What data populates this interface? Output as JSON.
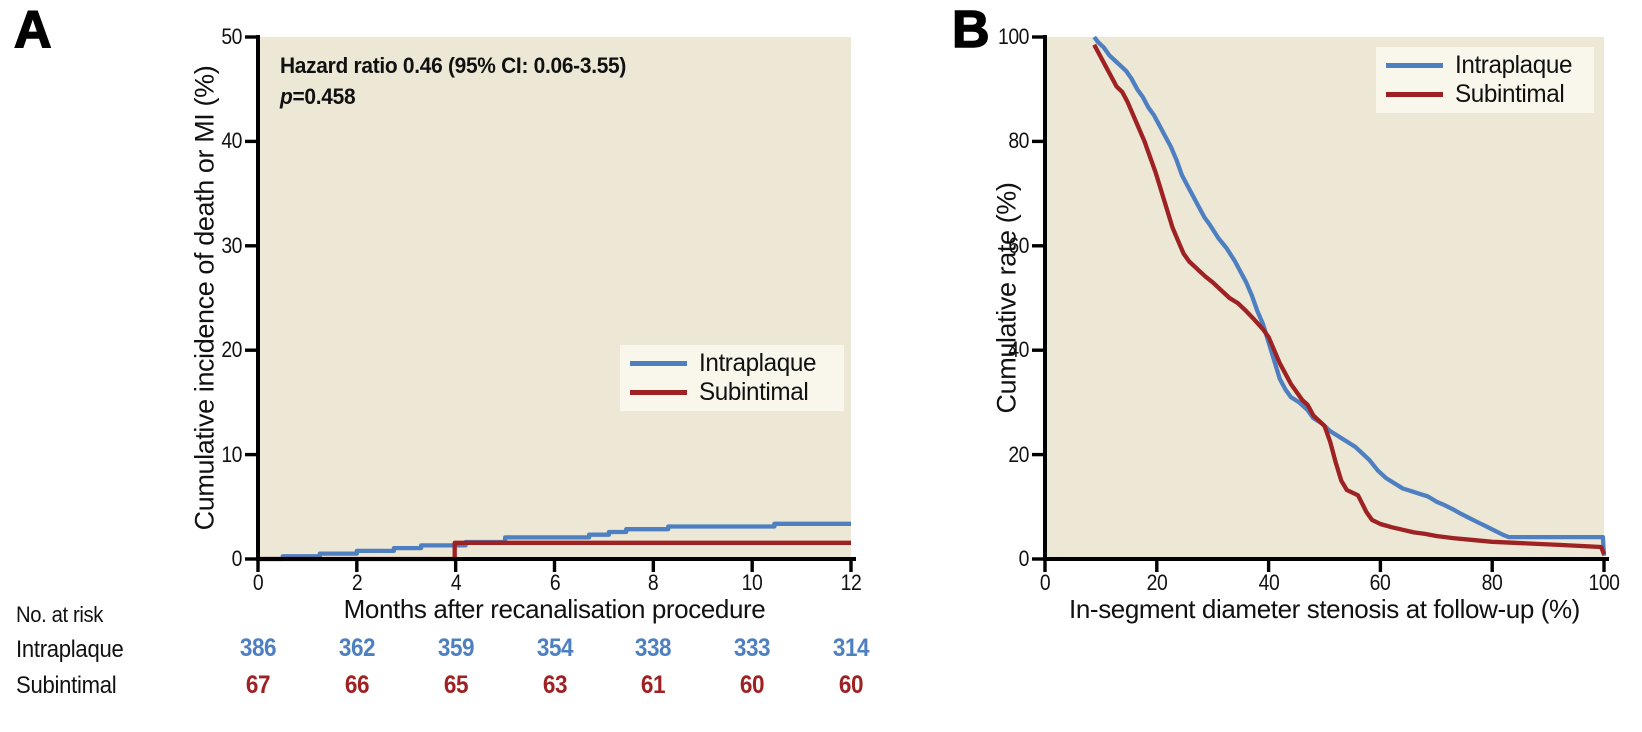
{
  "colors": {
    "blue": "#4E80C1",
    "red": "#9E2123",
    "plot_bg": "#ECE8D5",
    "legend_bg": "#F9F7EC",
    "axis": "#000000",
    "text": "#111111"
  },
  "chart_data": [
    {
      "type": "line",
      "panel": "A",
      "xlabel": "Months after recanalisation procedure",
      "ylabel": "Cumulative incidence of death or MI (%)",
      "xlim": [
        0,
        12
      ],
      "ylim": [
        0,
        50
      ],
      "xticks": [
        "0",
        "2",
        "4",
        "6",
        "8",
        "10",
        "12"
      ],
      "yticks": [
        "0",
        "10",
        "20",
        "30",
        "40",
        "50"
      ],
      "grid": false,
      "legend_position": "center-right",
      "annotation": {
        "line1": "Hazard ratio 0.46 (95% CI: 0.06-3.55)",
        "line2_italic": "p",
        "line2_rest": "=0.458"
      },
      "legend": [
        "Intraplaque",
        "Subintimal"
      ],
      "series": [
        {
          "name": "Intraplaque",
          "color": "#4E80C1",
          "interpolation": "step-after",
          "points": [
            [
              0,
              0
            ],
            [
              0.5,
              0.26
            ],
            [
              1.25,
              0.52
            ],
            [
              2.0,
              0.78
            ],
            [
              2.75,
              1.04
            ],
            [
              3.3,
              1.3
            ],
            [
              4.2,
              1.63
            ],
            [
              5.0,
              2.07
            ],
            [
              6.7,
              2.33
            ],
            [
              7.1,
              2.59
            ],
            [
              7.45,
              2.85
            ],
            [
              8.3,
              3.11
            ],
            [
              10.45,
              3.37
            ],
            [
              12,
              3.37
            ]
          ]
        },
        {
          "name": "Subintimal",
          "color": "#9E2123",
          "interpolation": "step-after",
          "points": [
            [
              0,
              0
            ],
            [
              3.98,
              1.55
            ],
            [
              12,
              1.55
            ]
          ]
        }
      ]
    },
    {
      "type": "line",
      "panel": "B",
      "xlabel": "In-segment diameter stenosis at follow-up (%)",
      "ylabel": "Cumulative rate (%)",
      "xlim": [
        0,
        100
      ],
      "ylim": [
        0,
        100
      ],
      "xticks": [
        "0",
        "20",
        "40",
        "60",
        "80",
        "100"
      ],
      "yticks": [
        "0",
        "20",
        "40",
        "60",
        "80",
        "100"
      ],
      "grid": false,
      "legend_position": "top-right",
      "legend": [
        "Intraplaque",
        "Subintimal"
      ],
      "series": [
        {
          "name": "Intraplaque",
          "color": "#4E80C1",
          "interpolation": "linear",
          "points": [
            [
              8.8,
              100
            ],
            [
              9.5,
              99
            ],
            [
              10.5,
              98
            ],
            [
              11.5,
              96.5
            ],
            [
              12.5,
              95.5
            ],
            [
              13.5,
              94.5
            ],
            [
              14.5,
              93.5
            ],
            [
              15.5,
              92
            ],
            [
              16.5,
              90
            ],
            [
              17.5,
              88.5
            ],
            [
              18.5,
              86.5
            ],
            [
              19.5,
              85
            ],
            [
              20.5,
              83
            ],
            [
              21.5,
              81
            ],
            [
              22.5,
              79
            ],
            [
              23.5,
              76.5
            ],
            [
              24.5,
              73.5
            ],
            [
              25.5,
              71.5
            ],
            [
              26.5,
              69.5
            ],
            [
              27.5,
              67.5
            ],
            [
              28.5,
              65.5
            ],
            [
              29.5,
              64
            ],
            [
              31,
              61.5
            ],
            [
              32.5,
              59.5
            ],
            [
              34,
              57
            ],
            [
              35,
              55
            ],
            [
              36,
              53
            ],
            [
              37,
              50.5
            ],
            [
              38,
              47.5
            ],
            [
              39,
              45
            ],
            [
              40,
              41.5
            ],
            [
              41,
              38
            ],
            [
              42,
              34.5
            ],
            [
              43,
              32.5
            ],
            [
              44,
              31
            ],
            [
              45.5,
              30
            ],
            [
              47,
              28.5
            ],
            [
              48,
              27
            ],
            [
              49.5,
              26
            ],
            [
              51,
              24.5
            ],
            [
              52.5,
              23.5
            ],
            [
              54,
              22.5
            ],
            [
              55.5,
              21.5
            ],
            [
              57,
              20
            ],
            [
              58,
              19
            ],
            [
              59.5,
              17
            ],
            [
              61,
              15.5
            ],
            [
              62.5,
              14.5
            ],
            [
              64,
              13.5
            ],
            [
              65.5,
              13
            ],
            [
              67,
              12.5
            ],
            [
              68.5,
              12
            ],
            [
              70,
              11
            ],
            [
              71.5,
              10.3
            ],
            [
              73,
              9.5
            ],
            [
              74.5,
              8.6
            ],
            [
              76,
              7.8
            ],
            [
              77.5,
              7
            ],
            [
              79,
              6.2
            ],
            [
              80.5,
              5.4
            ],
            [
              82,
              4.6
            ],
            [
              83,
              4.2
            ],
            [
              99.8,
              4.2
            ],
            [
              100,
              0.6
            ]
          ]
        },
        {
          "name": "Subintimal",
          "color": "#9E2123",
          "interpolation": "linear",
          "points": [
            [
              8.8,
              98.5
            ],
            [
              9.8,
              96.5
            ],
            [
              10.8,
              94.5
            ],
            [
              11.8,
              92.5
            ],
            [
              12.8,
              90.5
            ],
            [
              13.8,
              89.5
            ],
            [
              14.8,
              87.5
            ],
            [
              15.8,
              85
            ],
            [
              16.8,
              82.5
            ],
            [
              17.8,
              80
            ],
            [
              18.8,
              77
            ],
            [
              19.8,
              74
            ],
            [
              20.8,
              70.5
            ],
            [
              21.8,
              67
            ],
            [
              22.8,
              63.5
            ],
            [
              23.8,
              61
            ],
            [
              24.8,
              58.5
            ],
            [
              25.8,
              57
            ],
            [
              26.8,
              56
            ],
            [
              27.8,
              55
            ],
            [
              28.8,
              54
            ],
            [
              30,
              53
            ],
            [
              31.5,
              51.5
            ],
            [
              33,
              50
            ],
            [
              34.5,
              49
            ],
            [
              36,
              47.5
            ],
            [
              37.5,
              45.8
            ],
            [
              39,
              44
            ],
            [
              40,
              42.5
            ],
            [
              41,
              40
            ],
            [
              42,
              37.5
            ],
            [
              43,
              35.5
            ],
            [
              44,
              33.5
            ],
            [
              45,
              32
            ],
            [
              46,
              30.5
            ],
            [
              47,
              29.5
            ],
            [
              48,
              27.5
            ],
            [
              49,
              26.5
            ],
            [
              50,
              25.5
            ],
            [
              51,
              22.5
            ],
            [
              52,
              18.5
            ],
            [
              53,
              15
            ],
            [
              54,
              13.2
            ],
            [
              55,
              12.7
            ],
            [
              56,
              12.2
            ],
            [
              56.8,
              10.5
            ],
            [
              57.5,
              9
            ],
            [
              58.5,
              7.5
            ],
            [
              60,
              6.7
            ],
            [
              62,
              6.1
            ],
            [
              64,
              5.6
            ],
            [
              66,
              5.1
            ],
            [
              68,
              4.8
            ],
            [
              70,
              4.4
            ],
            [
              73,
              4
            ],
            [
              76,
              3.7
            ],
            [
              80,
              3.3
            ],
            [
              84,
              3.1
            ],
            [
              88,
              2.9
            ],
            [
              92,
              2.7
            ],
            [
              96,
              2.5
            ],
            [
              99.5,
              2.3
            ],
            [
              100,
              0.9
            ]
          ]
        }
      ]
    }
  ],
  "risk_table": {
    "title": "No. at risk",
    "timepoints": [
      0,
      2,
      4,
      6,
      8,
      10,
      12
    ],
    "rows": [
      {
        "label": "Intraplaque",
        "color": "#4E80C1",
        "values": [
          "386",
          "362",
          "359",
          "354",
          "338",
          "333",
          "314"
        ]
      },
      {
        "label": "Subintimal",
        "color": "#9E2123",
        "values": [
          "67",
          "66",
          "65",
          "63",
          "61",
          "60",
          "60"
        ]
      }
    ]
  }
}
